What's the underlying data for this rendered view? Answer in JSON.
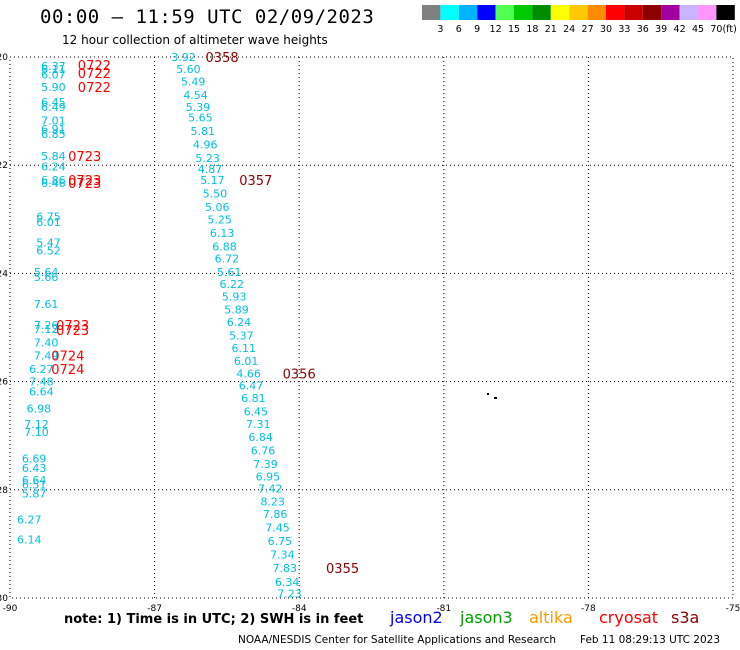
{
  "header": {
    "title": "00:00 — 11:59 UTC 02/09/2023",
    "subtitle": "12 hour collection of altimeter wave heights"
  },
  "colorbar": {
    "labels": [
      "3",
      "6",
      "9",
      "12",
      "15",
      "18",
      "21",
      "24",
      "27",
      "30",
      "33",
      "36",
      "39",
      "42",
      "45",
      "70"
    ],
    "unit": "(ft)",
    "colors": [
      "#808080",
      "#00ffff",
      "#00b4ff",
      "#0000ff",
      "#50ff50",
      "#00c800",
      "#008c00",
      "#ffff00",
      "#ffc800",
      "#ff8c00",
      "#ff0000",
      "#c80000",
      "#8c0000",
      "#a000a0",
      "#c8b4ff",
      "#ff96ff",
      "#000000"
    ]
  },
  "footer": {
    "note": "note: 1) Time is in UTC; 2) SWH is in feet",
    "credit": "NOAA/NESDIS Center for Satellite Applications and Research",
    "timestamp": "Feb 11 08:29:13 UTC 2023"
  },
  "satellites": [
    {
      "name": "jason2",
      "color": "#0000ff"
    },
    {
      "name": "jason3",
      "color": "#00a000"
    },
    {
      "name": "altika",
      "color": "#ff9900"
    },
    {
      "name": "cryosat",
      "color": "#ff0000"
    },
    {
      "name": "s3a",
      "color": "#8b0000"
    }
  ],
  "chart_data": {
    "type": "scatter",
    "title": "00:00 — 11:59 UTC 02/09/2023",
    "subtitle": "12 hour collection of altimeter wave heights",
    "xlabel": "",
    "ylabel": "",
    "xlim": [
      -90,
      -75
    ],
    "ylim": [
      -30,
      -20
    ],
    "x_ticks": [
      -90,
      -87,
      -84,
      -81,
      -78,
      -75
    ],
    "y_ticks": [
      -20,
      -22,
      -24,
      -26,
      -28,
      -30
    ],
    "x_tick_labels": [
      "-90",
      "-87",
      "-84",
      "-81",
      "-78",
      "-75"
    ],
    "y_tick_labels": [
      "-20",
      "-22",
      "-24",
      "-26",
      "-28",
      "-30"
    ],
    "grid": true,
    "point_color": "#00c0e0",
    "series": [
      {
        "track": "A",
        "points": [
          {
            "x": -89.1,
            "y": -20.17,
            "swh": "6.37"
          },
          {
            "x": -89.1,
            "y": -20.22,
            "swh": "6.11"
          },
          {
            "x": -89.1,
            "y": -20.32,
            "swh": "6.07"
          },
          {
            "x": -89.1,
            "y": -20.55,
            "swh": "5.90"
          },
          {
            "x": -89.1,
            "y": -20.83,
            "swh": "6.45"
          },
          {
            "x": -89.1,
            "y": -20.92,
            "swh": "6.49"
          },
          {
            "x": -89.1,
            "y": -21.17,
            "swh": "7.01"
          },
          {
            "x": -89.1,
            "y": -21.33,
            "swh": "6.91"
          },
          {
            "x": -89.1,
            "y": -21.42,
            "swh": "6.85"
          },
          {
            "x": -89.1,
            "y": -21.83,
            "swh": "5.84"
          },
          {
            "x": -89.1,
            "y": -22.02,
            "swh": "6.24"
          },
          {
            "x": -89.1,
            "y": -22.27,
            "swh": "6.86"
          },
          {
            "x": -89.1,
            "y": -22.33,
            "swh": "6.46"
          },
          {
            "x": -89.2,
            "y": -22.95,
            "swh": "6.75"
          },
          {
            "x": -89.2,
            "y": -23.05,
            "swh": "6.01"
          },
          {
            "x": -89.2,
            "y": -23.43,
            "swh": "5.47"
          },
          {
            "x": -89.2,
            "y": -23.58,
            "swh": "6.52"
          },
          {
            "x": -89.25,
            "y": -23.97,
            "swh": "5.64"
          },
          {
            "x": -89.25,
            "y": -24.07,
            "swh": "5.66"
          },
          {
            "x": -89.25,
            "y": -24.57,
            "swh": "7.61"
          },
          {
            "x": -89.25,
            "y": -24.95,
            "swh": "7.26"
          },
          {
            "x": -89.25,
            "y": -25.03,
            "swh": "7.12"
          },
          {
            "x": -89.25,
            "y": -25.28,
            "swh": "7.40"
          },
          {
            "x": -89.25,
            "y": -25.52,
            "swh": "7.49"
          },
          {
            "x": -89.35,
            "y": -25.77,
            "swh": "6.27"
          },
          {
            "x": -89.35,
            "y": -26.0,
            "swh": "7.48"
          },
          {
            "x": -89.35,
            "y": -26.18,
            "swh": "6.64"
          },
          {
            "x": -89.4,
            "y": -26.5,
            "swh": "6.98"
          },
          {
            "x": -89.45,
            "y": -26.78,
            "swh": "7.12"
          },
          {
            "x": -89.45,
            "y": -26.93,
            "swh": "7.10"
          },
          {
            "x": -89.5,
            "y": -27.42,
            "swh": "6.69"
          },
          {
            "x": -89.5,
            "y": -27.6,
            "swh": "6.43"
          },
          {
            "x": -89.5,
            "y": -27.82,
            "swh": "6.64"
          },
          {
            "x": -89.5,
            "y": -27.9,
            "swh": "6.51"
          },
          {
            "x": -89.5,
            "y": -28.07,
            "swh": "5.87"
          },
          {
            "x": -89.6,
            "y": -28.55,
            "swh": "6.27"
          },
          {
            "x": -89.6,
            "y": -28.92,
            "swh": "6.14"
          }
        ],
        "pass_labels": [
          {
            "x": -88.25,
            "y": -20.15,
            "label": "0722"
          },
          {
            "x": -88.25,
            "y": -20.3,
            "label": "0722"
          },
          {
            "x": -88.25,
            "y": -20.55,
            "label": "0722"
          },
          {
            "x": -88.45,
            "y": -21.83,
            "label": "0723"
          },
          {
            "x": -88.45,
            "y": -22.27,
            "label": "0723"
          },
          {
            "x": -88.45,
            "y": -22.33,
            "label": "0723"
          },
          {
            "x": -88.7,
            "y": -24.95,
            "label": "0723"
          },
          {
            "x": -88.7,
            "y": -25.05,
            "label": "0723"
          },
          {
            "x": -88.8,
            "y": -25.52,
            "label": "0724"
          },
          {
            "x": -88.8,
            "y": -25.77,
            "label": "0724"
          }
        ]
      },
      {
        "track": "B",
        "points": [
          {
            "x": -86.4,
            "y": -20.0,
            "swh": "3.92"
          },
          {
            "x": -86.3,
            "y": -20.22,
            "swh": "5.60"
          },
          {
            "x": -86.2,
            "y": -20.45,
            "swh": "5.49"
          },
          {
            "x": -86.15,
            "y": -20.7,
            "swh": "4.54"
          },
          {
            "x": -86.1,
            "y": -20.92,
            "swh": "5.39"
          },
          {
            "x": -86.05,
            "y": -21.12,
            "swh": "5.65"
          },
          {
            "x": -86.0,
            "y": -21.37,
            "swh": "5.81"
          },
          {
            "x": -85.95,
            "y": -21.62,
            "swh": "4.96"
          },
          {
            "x": -85.9,
            "y": -21.87,
            "swh": "5.23"
          },
          {
            "x": -85.85,
            "y": -22.07,
            "swh": "4.87"
          },
          {
            "x": -85.8,
            "y": -22.27,
            "swh": "5.17"
          },
          {
            "x": -85.75,
            "y": -22.52,
            "swh": "5.50"
          },
          {
            "x": -85.7,
            "y": -22.77,
            "swh": "5.06"
          },
          {
            "x": -85.65,
            "y": -23.0,
            "swh": "5.25"
          },
          {
            "x": -85.6,
            "y": -23.25,
            "swh": "6.13"
          },
          {
            "x": -85.55,
            "y": -23.5,
            "swh": "6.88"
          },
          {
            "x": -85.5,
            "y": -23.72,
            "swh": "6.72"
          },
          {
            "x": -85.45,
            "y": -23.97,
            "swh": "5.61"
          },
          {
            "x": -85.4,
            "y": -24.2,
            "swh": "6.22"
          },
          {
            "x": -85.35,
            "y": -24.43,
            "swh": "5.93"
          },
          {
            "x": -85.3,
            "y": -24.67,
            "swh": "5.89"
          },
          {
            "x": -85.25,
            "y": -24.9,
            "swh": "6.24"
          },
          {
            "x": -85.2,
            "y": -25.15,
            "swh": "5.37"
          },
          {
            "x": -85.15,
            "y": -25.38,
            "swh": "6.11"
          },
          {
            "x": -85.1,
            "y": -25.62,
            "swh": "6.01"
          },
          {
            "x": -85.05,
            "y": -25.85,
            "swh": "4.66"
          },
          {
            "x": -85.0,
            "y": -26.07,
            "swh": "6.47"
          },
          {
            "x": -84.95,
            "y": -26.3,
            "swh": "6.81"
          },
          {
            "x": -84.9,
            "y": -26.55,
            "swh": "6.45"
          },
          {
            "x": -84.85,
            "y": -26.78,
            "swh": "7.31"
          },
          {
            "x": -84.8,
            "y": -27.02,
            "swh": "6.84"
          },
          {
            "x": -84.75,
            "y": -27.27,
            "swh": "6.76"
          },
          {
            "x": -84.7,
            "y": -27.52,
            "swh": "7.39"
          },
          {
            "x": -84.65,
            "y": -27.75,
            "swh": "6.95"
          },
          {
            "x": -84.6,
            "y": -27.98,
            "swh": "7.42"
          },
          {
            "x": -84.55,
            "y": -28.22,
            "swh": "8.23"
          },
          {
            "x": -84.5,
            "y": -28.45,
            "swh": "7.86"
          },
          {
            "x": -84.45,
            "y": -28.7,
            "swh": "7.45"
          },
          {
            "x": -84.4,
            "y": -28.95,
            "swh": "6.75"
          },
          {
            "x": -84.35,
            "y": -29.2,
            "swh": "7.34"
          },
          {
            "x": -84.3,
            "y": -29.45,
            "swh": "7.83"
          },
          {
            "x": -84.25,
            "y": -29.7,
            "swh": "6.34"
          },
          {
            "x": -84.2,
            "y": -29.92,
            "swh": "7.23"
          }
        ],
        "pass_labels": [
          {
            "x": -85.6,
            "y": -20.0,
            "label": "0358"
          },
          {
            "x": -84.9,
            "y": -22.27,
            "label": "0357"
          },
          {
            "x": -84.0,
            "y": -25.85,
            "label": "0356"
          },
          {
            "x": -83.1,
            "y": -29.45,
            "label": "0355"
          }
        ]
      }
    ]
  }
}
